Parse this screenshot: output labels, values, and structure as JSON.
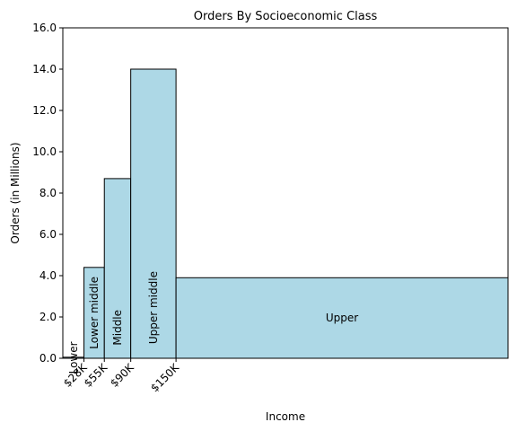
{
  "chart_data": {
    "type": "bar",
    "title": "Orders By Socioeconomic Class",
    "xlabel": "Income",
    "ylabel": "Orders (in Millions)",
    "ylim": [
      0,
      16
    ],
    "yticks": [
      "0.0",
      "2.0",
      "4.0",
      "6.0",
      "8.0",
      "10.0",
      "12.0",
      "14.0",
      "16.0"
    ],
    "xticks": [
      {
        "value": 28,
        "label": "$28K"
      },
      {
        "value": 55,
        "label": "$55K"
      },
      {
        "value": 90,
        "label": "$90K"
      },
      {
        "value": 150,
        "label": "$150K"
      }
    ],
    "xlim_thousands": [
      0,
      590
    ],
    "bars": [
      {
        "label": "Lower",
        "x_start": 0,
        "x_end": 28,
        "value": 0.05
      },
      {
        "label": "Lower middle",
        "x_start": 28,
        "x_end": 55,
        "value": 4.4
      },
      {
        "label": "Middle",
        "x_start": 55,
        "x_end": 90,
        "value": 8.7
      },
      {
        "label": "Upper middle",
        "x_start": 90,
        "x_end": 150,
        "value": 14.0
      },
      {
        "label": "Upper",
        "x_start": 150,
        "x_end": 590,
        "value": 3.9
      }
    ],
    "grid": false,
    "bar_color": "#add8e6",
    "edge_color": "#000000"
  }
}
